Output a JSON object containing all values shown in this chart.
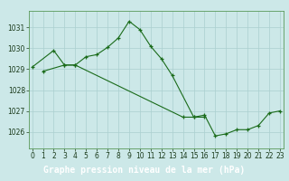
{
  "hours_l1": [
    0,
    2,
    3,
    4,
    5,
    6,
    7,
    8,
    9,
    10,
    11,
    12,
    13,
    15,
    16
  ],
  "vals_l1": [
    1029.1,
    1029.9,
    1029.2,
    1029.2,
    1029.6,
    1029.7,
    1030.05,
    1030.5,
    1031.3,
    1030.9,
    1030.1,
    1029.5,
    1028.7,
    1026.7,
    1026.7
  ],
  "hours_l2": [
    1,
    3,
    4,
    14,
    15,
    16,
    17,
    18,
    19,
    20,
    21,
    22,
    23
  ],
  "vals_l2": [
    1028.9,
    1029.2,
    1029.2,
    1026.7,
    1026.7,
    1026.8,
    1025.8,
    1025.9,
    1026.1,
    1026.1,
    1026.3,
    1026.9,
    1027.0
  ],
  "bg_color": "#cce8e8",
  "grid_color": "#aacfcf",
  "line_color": "#1a6b1a",
  "xlabel": "Graphe pression niveau de la mer (hPa)",
  "ylim": [
    1025.2,
    1031.8
  ],
  "xlim": [
    -0.3,
    23.3
  ],
  "yticks": [
    1026,
    1027,
    1028,
    1029,
    1030,
    1031
  ],
  "xticks": [
    0,
    1,
    2,
    3,
    4,
    5,
    6,
    7,
    8,
    9,
    10,
    11,
    12,
    13,
    14,
    15,
    16,
    17,
    18,
    19,
    20,
    21,
    22,
    23
  ],
  "title_bg": "#2d7a2d",
  "tick_fontsize": 5.5,
  "xlabel_fontsize": 7.0
}
